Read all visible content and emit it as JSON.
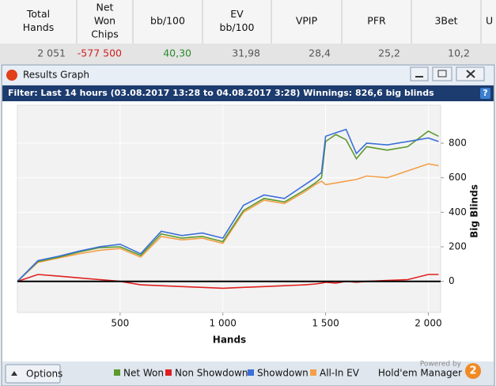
{
  "table": {
    "headers": [
      [
        "Total",
        "Hands"
      ],
      [
        "Net",
        "Won",
        "Chips"
      ],
      [
        "bb/100"
      ],
      [
        "EV",
        "bb/100"
      ],
      [
        "VPIP"
      ],
      [
        "PFR"
      ],
      [
        "3Bet"
      ],
      [
        "U"
      ]
    ],
    "row": [
      "2 051",
      "-577 500",
      "40,30",
      "31,98",
      "28,4",
      "25,2",
      "10,2"
    ]
  },
  "window": {
    "title": "Results Graph",
    "filter": "Filter: Last 14 hours (03.08.2017 13:28 to 04.08.2017 3:28) Winnings: 826,6 big blinds",
    "help": "?",
    "options": "Options",
    "powered_by": "Powered by",
    "brand": "Hold'em Manager",
    "logo": "2"
  },
  "chart_data": {
    "type": "line",
    "xlabel": "Hands",
    "ylabel": "Big Blinds",
    "x": [
      0,
      100,
      200,
      300,
      400,
      500,
      600,
      700,
      800,
      900,
      1000,
      1100,
      1200,
      1300,
      1400,
      1450,
      1480,
      1500,
      1550,
      1600,
      1650,
      1700,
      1800,
      1900,
      2000,
      2050
    ],
    "series": [
      {
        "name": "Net Won",
        "color": "#5c9a2c",
        "values": [
          0,
          115,
          140,
          170,
          195,
          200,
          150,
          275,
          250,
          260,
          230,
          410,
          480,
          460,
          530,
          570,
          600,
          810,
          850,
          820,
          710,
          780,
          760,
          780,
          870,
          840
        ]
      },
      {
        "name": "Non Showdown",
        "color": "#e02020",
        "values": [
          0,
          40,
          30,
          20,
          10,
          0,
          -20,
          -25,
          -30,
          -35,
          -40,
          -35,
          -30,
          -25,
          -20,
          -15,
          -10,
          -5,
          -10,
          0,
          -5,
          0,
          5,
          10,
          40,
          40
        ]
      },
      {
        "name": "Showdown",
        "color": "#3a6fd8",
        "values": [
          0,
          120,
          145,
          175,
          200,
          215,
          160,
          290,
          265,
          280,
          250,
          440,
          500,
          480,
          560,
          600,
          630,
          840,
          860,
          880,
          740,
          800,
          790,
          810,
          830,
          810
        ]
      },
      {
        "name": "All-In EV",
        "color": "#f4a04a",
        "values": [
          0,
          110,
          135,
          160,
          180,
          190,
          140,
          260,
          240,
          250,
          220,
          400,
          470,
          450,
          520,
          560,
          580,
          560,
          570,
          580,
          590,
          610,
          600,
          640,
          680,
          670
        ]
      }
    ],
    "xlim": [
      0,
      2060
    ],
    "ylim": [
      -180,
      1020
    ],
    "xticks": [
      500,
      {
        "value": 1000,
        "label": "1 000"
      },
      {
        "value": 1500,
        "label": "1 500"
      },
      {
        "value": 2000,
        "label": "2 000"
      }
    ],
    "yticks": [
      0,
      200,
      400,
      600,
      800
    ],
    "grid": true
  }
}
